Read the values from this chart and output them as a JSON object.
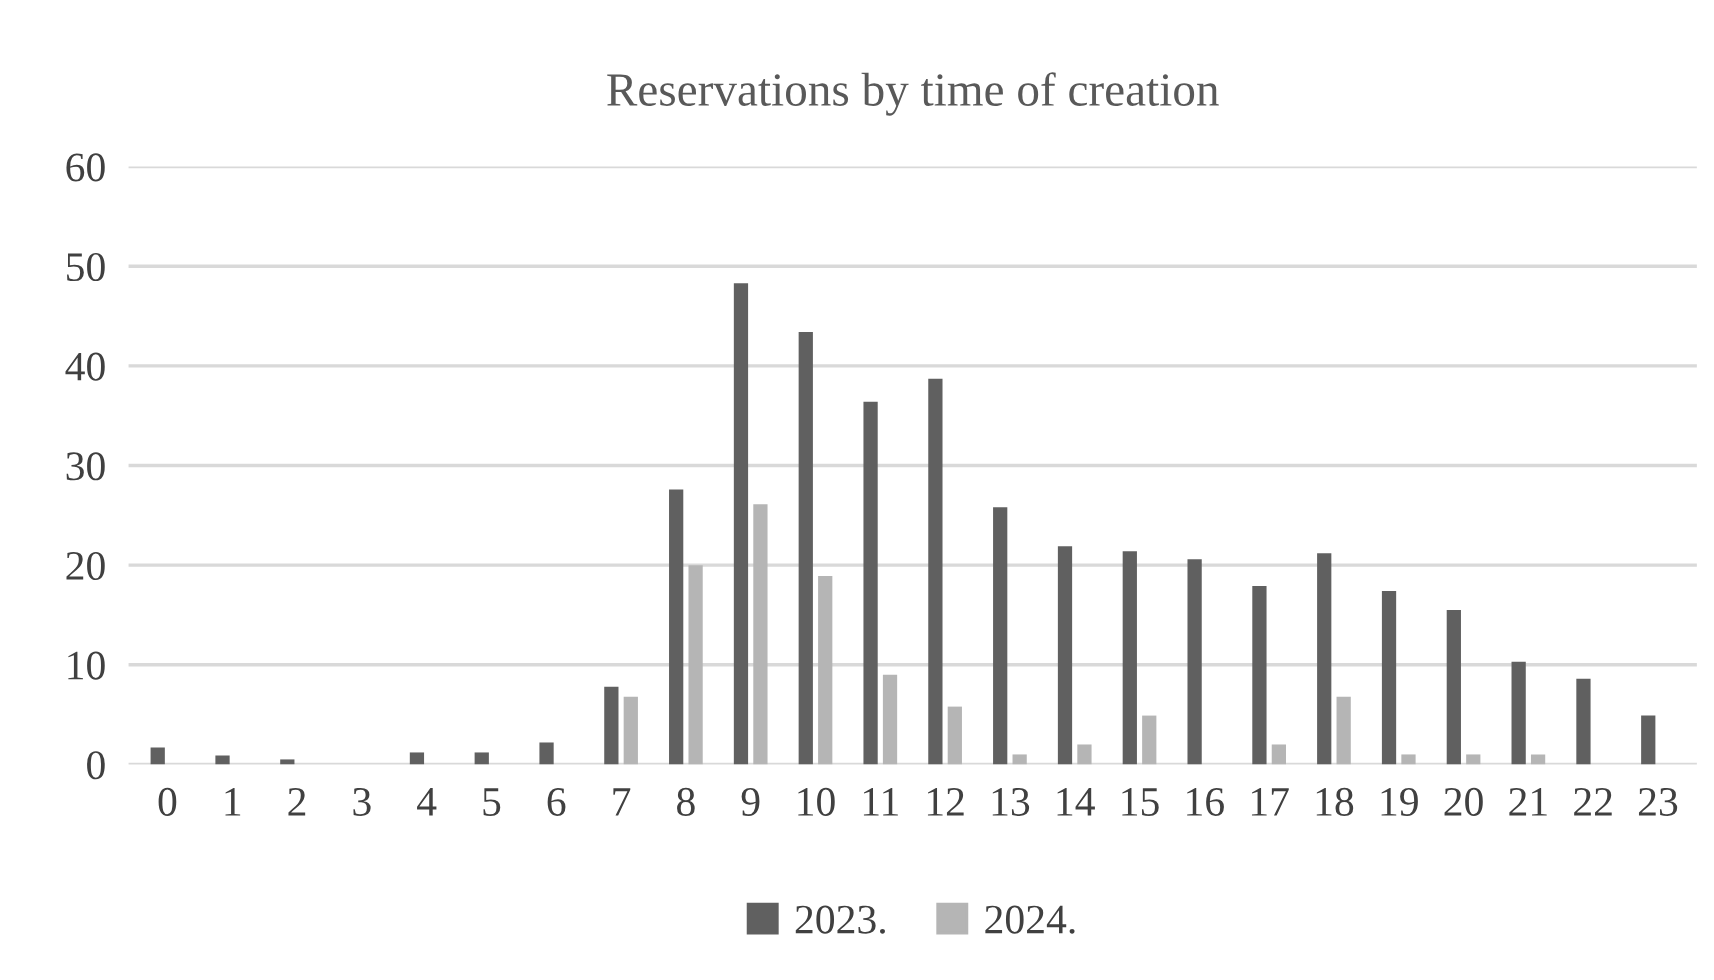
{
  "chart_data": {
    "type": "bar",
    "title": "Reservations by time of creation",
    "categories": [
      "0",
      "1",
      "2",
      "3",
      "4",
      "5",
      "6",
      "7",
      "8",
      "9",
      "10",
      "11",
      "12",
      "13",
      "14",
      "15",
      "16",
      "17",
      "18",
      "19",
      "20",
      "21",
      "22",
      "23"
    ],
    "series": [
      {
        "name": "2023.",
        "color": "#606060",
        "values": [
          1.7,
          0.9,
          0.5,
          0,
          1.2,
          1.2,
          2.2,
          7.8,
          27.6,
          48.3,
          43.4,
          36.4,
          38.7,
          25.8,
          21.9,
          21.4,
          20.6,
          17.9,
          21.2,
          17.4,
          15.5,
          10.3,
          8.6,
          4.9
        ]
      },
      {
        "name": "2024.",
        "color": "#b5b5b5",
        "values": [
          0,
          0,
          0,
          0,
          0,
          0,
          0,
          6.8,
          20,
          26.1,
          18.9,
          9,
          5.8,
          1,
          2,
          4.9,
          0,
          2,
          6.8,
          1,
          1,
          1,
          0,
          0
        ]
      }
    ],
    "ylim": [
      0,
      60
    ],
    "yticks": [
      0,
      10,
      20,
      30,
      40,
      50,
      60
    ],
    "grid": "y",
    "legend": "bottom"
  }
}
